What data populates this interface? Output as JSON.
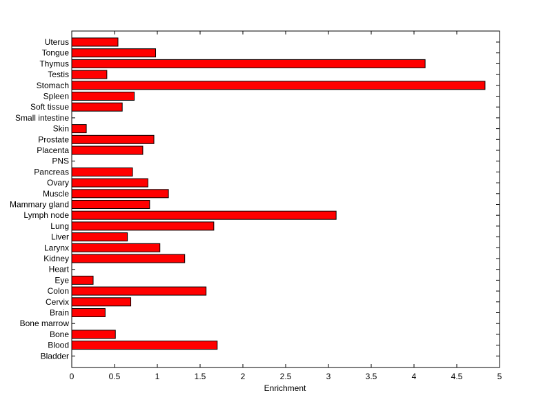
{
  "chart_data": {
    "type": "bar",
    "orientation": "horizontal",
    "categories": [
      "Uterus",
      "Tongue",
      "Thymus",
      "Testis",
      "Stomach",
      "Spleen",
      "Soft tissue",
      "Small intestine",
      "Skin",
      "Prostate",
      "Placenta",
      "PNS",
      "Pancreas",
      "Ovary",
      "Muscle",
      "Mammary gland",
      "Lymph node",
      "Lung",
      "Liver",
      "Larynx",
      "Kidney",
      "Heart",
      "Eye",
      "Colon",
      "Cervix",
      "Brain",
      "Bone marrow",
      "Bone",
      "Blood",
      "Bladder"
    ],
    "values": [
      0.54,
      0.98,
      4.13,
      0.41,
      4.83,
      0.73,
      0.59,
      0,
      0.17,
      0.96,
      0.83,
      0,
      0.71,
      0.89,
      1.13,
      0.91,
      3.09,
      1.66,
      0.65,
      1.03,
      1.32,
      0,
      0.25,
      1.57,
      0.69,
      0.39,
      0,
      0.51,
      1.7,
      0
    ],
    "xlabel": "Enrichment",
    "ylabel": "",
    "title": "",
    "xlim": [
      0,
      5
    ],
    "xticks": [
      "0",
      "0.5",
      "1",
      "1.5",
      "2",
      "2.5",
      "3",
      "3.5",
      "4",
      "4.5",
      "5"
    ],
    "bar_color": "#ff0000",
    "edge_color": "#000000",
    "grid": false,
    "legend": "none"
  }
}
